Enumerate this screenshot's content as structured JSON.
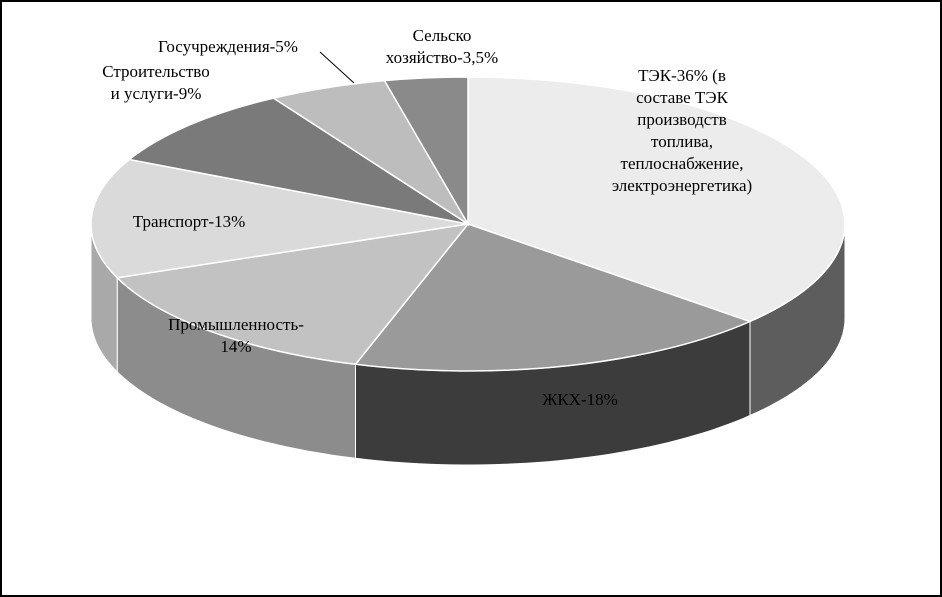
{
  "chart_data": {
    "type": "pie",
    "title": "",
    "slices": [
      {
        "label_lines": [
          "ТЭК-36% (в",
          "составе ТЭК",
          "производств",
          "топлива,",
          "теплоснабжение,",
          "электроэнергетика)"
        ],
        "value": 36,
        "top_color": "#ececec",
        "side_color": "#5d5d5d"
      },
      {
        "label_lines": [
          "ЖКХ-18%"
        ],
        "value": 18,
        "top_color": "#9a9a9a",
        "side_color": "#3c3c3c"
      },
      {
        "label_lines": [
          "Промышленность-",
          "14%"
        ],
        "value": 14,
        "top_color": "#c2c2c2",
        "side_color": "#8c8c8c"
      },
      {
        "label_lines": [
          "Транспорт-13%"
        ],
        "value": 13,
        "top_color": "#dadada",
        "side_color": "#a9a9a9"
      },
      {
        "label_lines": [
          "Строительство",
          "и услуги-9%"
        ],
        "value": 9,
        "top_color": "#7a7a7a",
        "side_color": "#555555"
      },
      {
        "label_lines": [
          "Госучреждения-5%"
        ],
        "value": 5,
        "top_color": "#bdbdbd",
        "side_color": "#888888"
      },
      {
        "label_lines": [
          "Сельско",
          "хозяйство-3,5%"
        ],
        "value": 3.5,
        "top_color": "#8a8a8a",
        "side_color": "#5a5a5a"
      }
    ]
  }
}
